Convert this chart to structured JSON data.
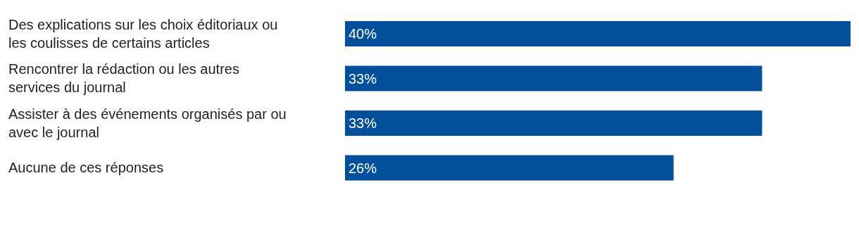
{
  "chart_data": {
    "type": "bar",
    "orientation": "horizontal",
    "categories": [
      "Des explications sur les choix éditoriaux ou les coulisses de certains articles",
      "Rencontrer la rédaction ou les autres services du journal",
      "Assister à des événements organisés par ou avec le journal",
      "Aucune de ces réponses"
    ],
    "values": [
      40,
      33,
      33,
      26
    ],
    "value_labels": [
      "40%",
      "33%",
      "33%",
      "26%"
    ],
    "color": "#024f9c"
  }
}
